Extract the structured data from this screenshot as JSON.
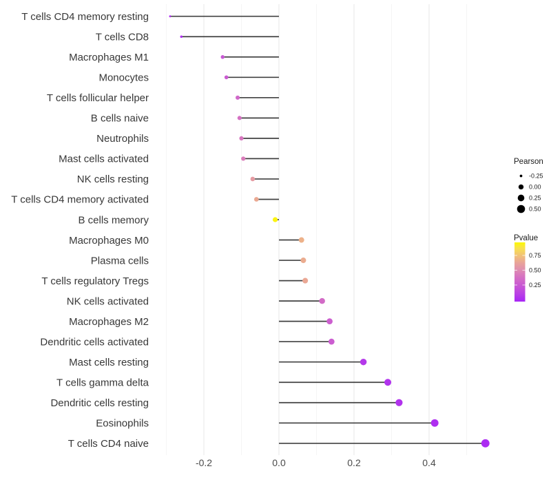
{
  "chart_data": {
    "type": "scatter",
    "variant": "lollipop",
    "orientation": "horizontal",
    "title": "",
    "xlabel": "",
    "ylabel": "",
    "grid": true,
    "legend_position": "right",
    "xlim": [
      -0.34,
      0.6
    ],
    "baseline": 0,
    "x_tick_values": [
      -0.2,
      0.0,
      0.2,
      0.4
    ],
    "x_tick_labels": [
      "-0.2",
      "0.0",
      "0.2",
      "0.4"
    ],
    "x_minor_tick_values": [
      -0.3,
      -0.1,
      0.1,
      0.3,
      0.5
    ],
    "categories": [
      "T cells CD4 memory resting",
      "T cells CD8",
      "Macrophages M1",
      "Monocytes",
      "T cells follicular helper",
      "B cells naive",
      "Neutrophils",
      "Mast cells activated",
      "NK cells resting",
      "T cells CD4 memory activated",
      "B cells memory",
      "Macrophages M0",
      "Plasma cells",
      "T cells regulatory  Tregs",
      "NK cells activated",
      "Macrophages M2",
      "Dendritic cells activated",
      "Mast cells resting",
      "T cells gamma delta",
      "Dendritic cells resting",
      "Eosinophils",
      "T cells CD4 naive"
    ],
    "series": [
      {
        "name": "Pearson",
        "values": [
          -0.29,
          -0.26,
          -0.15,
          -0.14,
          -0.11,
          -0.105,
          -0.1,
          -0.095,
          -0.07,
          -0.06,
          -0.01,
          0.06,
          0.065,
          0.07,
          0.115,
          0.135,
          0.14,
          0.225,
          0.29,
          0.32,
          0.415,
          0.55
        ]
      },
      {
        "name": "Pvalue",
        "values": [
          0.015,
          0.02,
          0.24,
          0.26,
          0.33,
          0.38,
          0.41,
          0.44,
          0.58,
          0.65,
          0.95,
          0.68,
          0.66,
          0.64,
          0.35,
          0.28,
          0.27,
          0.06,
          0.04,
          0.035,
          0.015,
          0.003
        ]
      }
    ],
    "size_legend": {
      "title": "Pearson",
      "labels": [
        "-0.25",
        "0.00",
        "0.25",
        "0.50"
      ],
      "values": [
        -0.25,
        0.0,
        0.25,
        0.5
      ],
      "dot_color": "#000000"
    },
    "color_legend": {
      "title": "Pvalue",
      "labels": [
        "0.75",
        "0.50",
        "0.25"
      ],
      "values": [
        0.75,
        0.5,
        0.25
      ],
      "bar_value_range": [
        0.0,
        0.97
      ],
      "gradient_stops": [
        {
          "t": 0.0,
          "color": "#A825F6"
        },
        {
          "t": 0.15,
          "color": "#BC44E2"
        },
        {
          "t": 0.3,
          "color": "#CB5DD0"
        },
        {
          "t": 0.45,
          "color": "#D878BE"
        },
        {
          "t": 0.55,
          "color": "#E091AE"
        },
        {
          "t": 0.65,
          "color": "#E8A29A"
        },
        {
          "t": 0.78,
          "color": "#F2C276"
        },
        {
          "t": 0.9,
          "color": "#F8E14E"
        },
        {
          "t": 1.0,
          "color": "#FCF803"
        }
      ]
    },
    "colors": {
      "stem": "#404040",
      "grid_major": "#e9e9e9",
      "grid_minor": "#f4f4f4",
      "axis_text": "#4a4a4a",
      "category_text": "#383838",
      "legend_text": "#1a1a1a",
      "background": "#ffffff"
    }
  }
}
